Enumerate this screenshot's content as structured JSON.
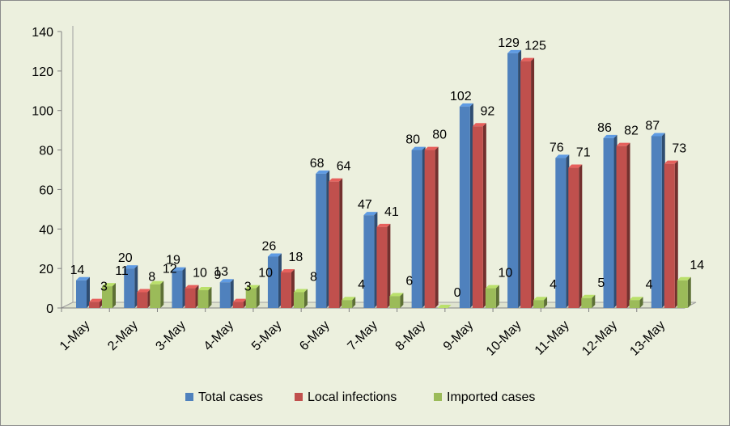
{
  "chart_data": {
    "type": "bar",
    "categories": [
      "1-May",
      "2-May",
      "3-May",
      "4-May",
      "5-May",
      "6-May",
      "7-May",
      "8-May",
      "9-May",
      "10-May",
      "11-May",
      "12-May",
      "13-May"
    ],
    "series": [
      {
        "name": "Total cases",
        "values": [
          14,
          20,
          19,
          13,
          26,
          68,
          47,
          80,
          102,
          129,
          76,
          86,
          87
        ],
        "color": "#4f81bd"
      },
      {
        "name": "Local infections",
        "values": [
          3,
          8,
          10,
          3,
          18,
          64,
          41,
          80,
          92,
          125,
          71,
          82,
          73
        ],
        "color": "#c0504d"
      },
      {
        "name": "Imported cases",
        "values": [
          11,
          12,
          9,
          10,
          8,
          4,
          6,
          0,
          10,
          4,
          5,
          4,
          14
        ],
        "color": "#9bbb59"
      }
    ],
    "ylim": [
      0,
      140
    ],
    "yticks": [
      0,
      20,
      40,
      60,
      80,
      100,
      120,
      140
    ],
    "grid": false,
    "legend_position": "bottom",
    "title": "",
    "xlabel": "",
    "ylabel": ""
  }
}
